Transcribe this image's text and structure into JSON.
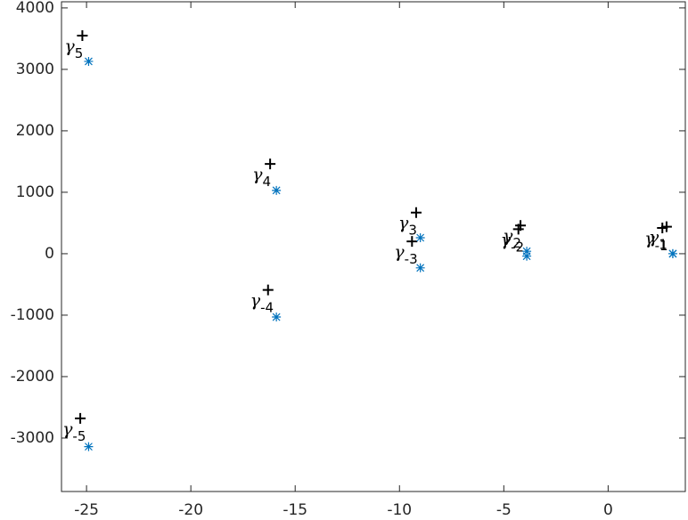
{
  "chart_data": {
    "type": "scatter",
    "xlim": [
      -26.2,
      3.7
    ],
    "ylim": [
      -3870,
      4100
    ],
    "xticks": [
      -25,
      -20,
      -15,
      -10,
      -5,
      0
    ],
    "yticks": [
      -3000,
      -2000,
      -1000,
      0,
      1000,
      2000,
      3000,
      4000
    ],
    "grid": false,
    "series": [
      {
        "marker": "plus",
        "color": "#000000",
        "x": [
          -25.2,
          -25.3,
          -16.2,
          -16.3,
          -9.2,
          -9.4,
          -4.2,
          -4.3,
          2.8,
          2.6
        ],
        "values": [
          3550,
          -2680,
          1460,
          -590,
          670,
          200,
          460,
          400,
          440,
          420
        ],
        "labels": [
          {
            "symbol": "γ",
            "sub": "5"
          },
          {
            "symbol": "γ",
            "sub": "-5"
          },
          {
            "symbol": "γ",
            "sub": "4"
          },
          {
            "symbol": "γ",
            "sub": "-4"
          },
          {
            "symbol": "γ",
            "sub": "3"
          },
          {
            "symbol": "γ",
            "sub": "-3"
          },
          {
            "symbol": "γ",
            "sub": "2"
          },
          {
            "symbol": "γ",
            "sub": "-2"
          },
          {
            "symbol": "γ",
            "sub": "1"
          },
          {
            "symbol": "γ",
            "sub": "-1"
          }
        ]
      },
      {
        "marker": "asterisk",
        "color": "#0072bd",
        "x": [
          -24.9,
          -24.9,
          -15.9,
          -15.9,
          -9.0,
          -9.0,
          -3.9,
          -3.9,
          3.1,
          3.1
        ],
        "values": [
          3130,
          -3140,
          1030,
          -1030,
          260,
          -230,
          40,
          -40,
          0,
          0
        ]
      }
    ]
  }
}
